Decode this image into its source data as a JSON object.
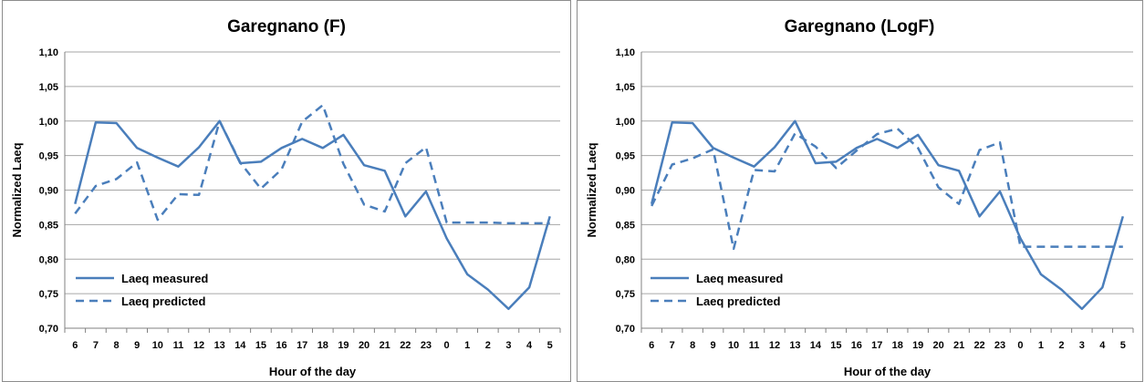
{
  "colors": {
    "series": "#4a7ebb",
    "grid": "#a6a6a6",
    "axis": "#808080"
  },
  "chart_data": [
    {
      "type": "line",
      "title": "Garegnano (F)",
      "xlabel": "Hour of the day",
      "ylabel": "Normalized Laeq",
      "categories": [
        "6",
        "7",
        "8",
        "9",
        "10",
        "11",
        "12",
        "13",
        "14",
        "15",
        "16",
        "17",
        "18",
        "19",
        "20",
        "21",
        "22",
        "23",
        "0",
        "1",
        "2",
        "3",
        "4",
        "5"
      ],
      "yticks": [
        "0,70",
        "0,75",
        "0,80",
        "0,85",
        "0,90",
        "0,95",
        "1,00",
        "1,05",
        "1,10"
      ],
      "ylim": [
        0.7,
        1.1
      ],
      "grid": true,
      "legend_position": "bottom-left",
      "series": [
        {
          "name": "Laeq measured",
          "style": "solid",
          "values": [
            0.88,
            0.998,
            0.997,
            0.961,
            0.947,
            0.934,
            0.962,
            1.0,
            0.939,
            0.941,
            0.961,
            0.974,
            0.961,
            0.98,
            0.936,
            0.928,
            0.862,
            0.898,
            0.83,
            0.778,
            0.756,
            0.728,
            0.759,
            0.862
          ]
        },
        {
          "name": "Laeq predicted",
          "style": "dashed",
          "values": [
            0.866,
            0.906,
            0.916,
            0.94,
            0.857,
            0.894,
            0.893,
            1.0,
            0.94,
            0.902,
            0.93,
            0.999,
            1.023,
            0.938,
            0.879,
            0.869,
            0.939,
            0.962,
            0.853,
            0.853,
            0.853,
            0.852,
            0.852,
            0.852
          ]
        }
      ]
    },
    {
      "type": "line",
      "title": "Garegnano (LogF)",
      "xlabel": "Hour of the day",
      "ylabel": "Normalized Laeq",
      "categories": [
        "6",
        "7",
        "8",
        "9",
        "10",
        "11",
        "12",
        "13",
        "14",
        "15",
        "16",
        "17",
        "18",
        "19",
        "20",
        "21",
        "22",
        "23",
        "0",
        "1",
        "2",
        "3",
        "4",
        "5"
      ],
      "yticks": [
        "0,70",
        "0,75",
        "0,80",
        "0,85",
        "0,90",
        "0,95",
        "1,00",
        "1,05",
        "1,10"
      ],
      "ylim": [
        0.7,
        1.1
      ],
      "grid": true,
      "legend_position": "bottom-left",
      "series": [
        {
          "name": "Laeq measured",
          "style": "solid",
          "values": [
            0.88,
            0.998,
            0.997,
            0.961,
            0.947,
            0.934,
            0.962,
            1.0,
            0.939,
            0.941,
            0.961,
            0.974,
            0.961,
            0.98,
            0.936,
            0.928,
            0.862,
            0.898,
            0.83,
            0.778,
            0.756,
            0.728,
            0.759,
            0.862
          ]
        },
        {
          "name": "Laeq predicted",
          "style": "dashed",
          "values": [
            0.877,
            0.937,
            0.946,
            0.959,
            0.815,
            0.929,
            0.927,
            0.982,
            0.963,
            0.932,
            0.957,
            0.981,
            0.989,
            0.961,
            0.904,
            0.88,
            0.958,
            0.969,
            0.818,
            0.818,
            0.818,
            0.818,
            0.818,
            0.818
          ]
        }
      ]
    }
  ]
}
